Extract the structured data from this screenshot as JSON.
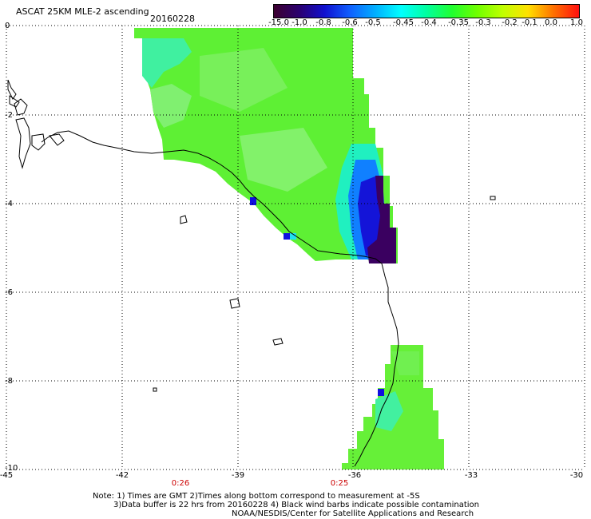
{
  "header": {
    "title": "ASCAT 25KM MLE-2 ascending",
    "date": "20160228"
  },
  "colorbar": {
    "labels": [
      "-15.0",
      "-1.0",
      "-0.8",
      "-0.6",
      "-0.5",
      "-0.45",
      "-0.4",
      "-0.35",
      "-0.3",
      "-0.2",
      "-0.1",
      "0.0",
      "1.0"
    ],
    "colors": [
      "#3c0030",
      "#2a0070",
      "#1010d0",
      "#1060ff",
      "#00b0ff",
      "#00ffff",
      "#00ffa0",
      "#20ff30",
      "#70ff00",
      "#c0ff00",
      "#ffe000",
      "#ff7000",
      "#ff1010"
    ]
  },
  "map": {
    "y_axis": [
      "0",
      "-2",
      "-4",
      "-6",
      "-8",
      "-10"
    ],
    "x_axis": [
      "-45",
      "-42",
      "-39",
      "-36",
      "-33",
      "-30"
    ],
    "times": [
      "0:26",
      "0:25"
    ]
  },
  "footer": {
    "line1": "Note: 1) Times are GMT 2)Times along bottom correspond to measurement at -5S",
    "line2": "3)Data buffer is 22 hrs from 20160228 4) Black wind barbs indicate possible contamination",
    "line3": "NOAA/NESDIS/Center for Satellite Applications and Research"
  }
}
